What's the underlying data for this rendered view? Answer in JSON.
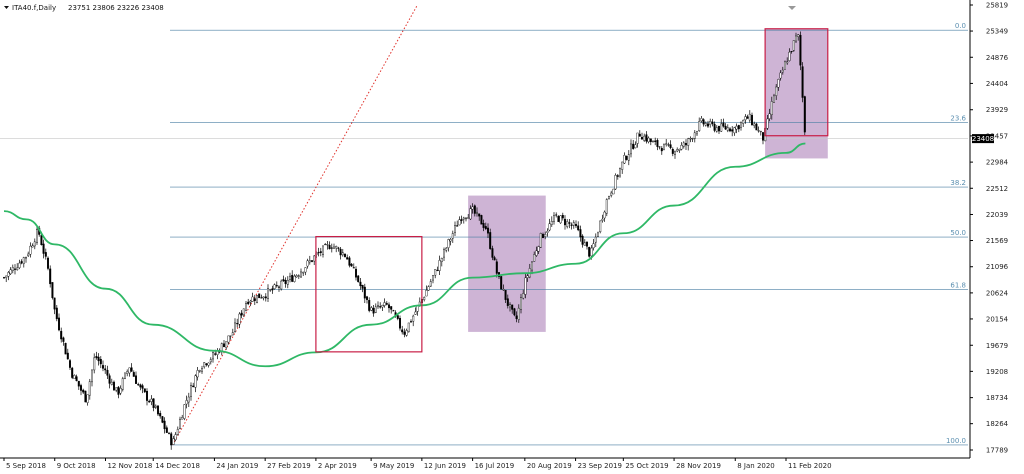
{
  "chart_data": {
    "type": "candlestick",
    "title": "ITA40.f,Daily",
    "ohlc": {
      "open": 23751,
      "high": 23806,
      "low": 23226,
      "close": 23408
    },
    "ohlc_text": "23751 23806 23226 23408",
    "last_price_label": "23408",
    "ylim": [
      17789,
      25819
    ],
    "y_ticks": [
      25819,
      25349,
      24876,
      24404,
      23929,
      23457,
      22984,
      22512,
      22039,
      21569,
      21096,
      20624,
      20154,
      19679,
      19208,
      18734,
      18264,
      17789
    ],
    "x_ticks": [
      "5 Sep 2018",
      "9 Oct 2018",
      "12 Nov 2018",
      "14 Dec 2018",
      "24 Jan 2019",
      "27 Feb 2019",
      "2 Apr 2019",
      "9 May 2019",
      "12 Jun 2019",
      "16 Jul 2019",
      "20 Aug 2019",
      "23 Sep 2019",
      "25 Oct 2019",
      "28 Nov 2019",
      "8 Jan 2020",
      "11 Feb 2020"
    ],
    "fib_levels": [
      {
        "label": "0.0",
        "value": 25365
      },
      {
        "label": "23.6",
        "value": 23702
      },
      {
        "label": "38.2",
        "value": 22533
      },
      {
        "label": "50.0",
        "value": 21631
      },
      {
        "label": "61.8",
        "value": 20682
      },
      {
        "label": "100.0",
        "value": 17880
      }
    ],
    "price_series": [
      {
        "date": "5 Sep 2018",
        "close": 20900
      },
      {
        "date": "20 Sep 2018",
        "close": 21300
      },
      {
        "date": "28 Sep 2018",
        "close": 21750
      },
      {
        "date": "5 Oct 2018",
        "close": 21000
      },
      {
        "date": "9 Oct 2018",
        "close": 20300
      },
      {
        "date": "20 Oct 2018",
        "close": 19200
      },
      {
        "date": "30 Oct 2018",
        "close": 18700
      },
      {
        "date": "5 Nov 2018",
        "close": 19500
      },
      {
        "date": "12 Nov 2018",
        "close": 19200
      },
      {
        "date": "20 Nov 2018",
        "close": 18800
      },
      {
        "date": "28 Nov 2018",
        "close": 19300
      },
      {
        "date": "5 Dec 2018",
        "close": 18900
      },
      {
        "date": "14 Dec 2018",
        "close": 18600
      },
      {
        "date": "27 Dec 2018",
        "close": 17900
      },
      {
        "date": "4 Jan 2019",
        "close": 18600
      },
      {
        "date": "14 Jan 2019",
        "close": 19300
      },
      {
        "date": "24 Jan 2019",
        "close": 19500
      },
      {
        "date": "5 Feb 2019",
        "close": 19900
      },
      {
        "date": "15 Feb 2019",
        "close": 20500
      },
      {
        "date": "27 Feb 2019",
        "close": 20600
      },
      {
        "date": "12 Mar 2019",
        "close": 20800
      },
      {
        "date": "22 Mar 2019",
        "close": 21000
      },
      {
        "date": "2 Apr 2019",
        "close": 21300
      },
      {
        "date": "12 Apr 2019",
        "close": 21500
      },
      {
        "date": "22 Apr 2019",
        "close": 21300
      },
      {
        "date": "1 May 2019",
        "close": 20800
      },
      {
        "date": "9 May 2019",
        "close": 20300
      },
      {
        "date": "20 May 2019",
        "close": 20400
      },
      {
        "date": "31 May 2019",
        "close": 19900
      },
      {
        "date": "6 Jun 2019",
        "close": 20200
      },
      {
        "date": "12 Jun 2019",
        "close": 20500
      },
      {
        "date": "21 Jun 2019",
        "close": 21000
      },
      {
        "date": "1 Jul 2019",
        "close": 21600
      },
      {
        "date": "8 Jul 2019",
        "close": 22000
      },
      {
        "date": "16 Jul 2019",
        "close": 22100
      },
      {
        "date": "25 Jul 2019",
        "close": 21800
      },
      {
        "date": "2 Aug 2019",
        "close": 20900
      },
      {
        "date": "9 Aug 2019",
        "close": 20400
      },
      {
        "date": "14 Aug 2019",
        "close": 20100
      },
      {
        "date": "20 Aug 2019",
        "close": 20800
      },
      {
        "date": "30 Aug 2019",
        "close": 21600
      },
      {
        "date": "10 Sep 2019",
        "close": 22000
      },
      {
        "date": "23 Sep 2019",
        "close": 21800
      },
      {
        "date": "3 Oct 2019",
        "close": 21300
      },
      {
        "date": "14 Oct 2019",
        "close": 22300
      },
      {
        "date": "25 Oct 2019",
        "close": 23000
      },
      {
        "date": "5 Nov 2019",
        "close": 23500
      },
      {
        "date": "15 Nov 2019",
        "close": 23300
      },
      {
        "date": "28 Nov 2019",
        "close": 23200
      },
      {
        "date": "6 Dec 2019",
        "close": 23300
      },
      {
        "date": "16 Dec 2019",
        "close": 23700
      },
      {
        "date": "27 Dec 2019",
        "close": 23600
      },
      {
        "date": "8 Jan 2020",
        "close": 23600
      },
      {
        "date": "17 Jan 2020",
        "close": 23800
      },
      {
        "date": "27 Jan 2020",
        "close": 23400
      },
      {
        "date": "3 Feb 2020",
        "close": 24200
      },
      {
        "date": "11 Feb 2020",
        "close": 24800
      },
      {
        "date": "19 Feb 2020",
        "close": 25300
      },
      {
        "date": "21 Feb 2020",
        "close": 24600
      },
      {
        "date": "24 Feb 2020",
        "close": 23408
      }
    ],
    "moving_average": [
      {
        "date": "5 Sep 2018",
        "value": 22100
      },
      {
        "date": "20 Sep 2018",
        "value": 21950
      },
      {
        "date": "9 Oct 2018",
        "value": 21500
      },
      {
        "date": "12 Nov 2018",
        "value": 20700
      },
      {
        "date": "14 Dec 2018",
        "value": 20050
      },
      {
        "date": "24 Jan 2019",
        "value": 19580
      },
      {
        "date": "27 Feb 2019",
        "value": 19300
      },
      {
        "date": "2 Apr 2019",
        "value": 19550
      },
      {
        "date": "9 May 2019",
        "value": 20050
      },
      {
        "date": "12 Jun 2019",
        "value": 20400
      },
      {
        "date": "16 Jul 2019",
        "value": 20900
      },
      {
        "date": "20 Aug 2019",
        "value": 20980
      },
      {
        "date": "23 Sep 2019",
        "value": 21150
      },
      {
        "date": "25 Oct 2019",
        "value": 21700
      },
      {
        "date": "28 Nov 2019",
        "value": 22200
      },
      {
        "date": "8 Jan 2020",
        "value": 22900
      },
      {
        "date": "11 Feb 2020",
        "value": 23150
      },
      {
        "date": "24 Feb 2020",
        "value": 23320
      }
    ],
    "trendline": {
      "from": {
        "date": "27 Dec 2018",
        "value": 17880
      },
      "to": {
        "date": "9 Jun 2019",
        "value": 25819
      }
    },
    "rectangles": [
      {
        "x0": "2 Apr 2019",
        "x1": "12 Jun 2019",
        "y0": 19560,
        "y1": 21640,
        "style": "outline"
      },
      {
        "x0": "13 Jul 2019",
        "x1": "3 Sep 2019",
        "y0": 19920,
        "y1": 22380,
        "style": "filled"
      },
      {
        "x0": "28 Jan 2020",
        "x1": "10 Mar 2020",
        "y0": 23050,
        "y1": 25390,
        "style": "filled"
      },
      {
        "x0": "28 Jan 2020",
        "x1": "10 Mar 2020",
        "y0": 23460,
        "y1": 25390,
        "style": "outline"
      }
    ],
    "grid": false,
    "legend": "none"
  },
  "colors": {
    "candle": "#000000",
    "moving_average": "#2fb866",
    "trendline": "#e0302a",
    "rect_outline": "#c81e46",
    "rect_fill": "#b48cbe",
    "fib_line": "#4a7fa3",
    "last_price_bg": "#000000"
  }
}
